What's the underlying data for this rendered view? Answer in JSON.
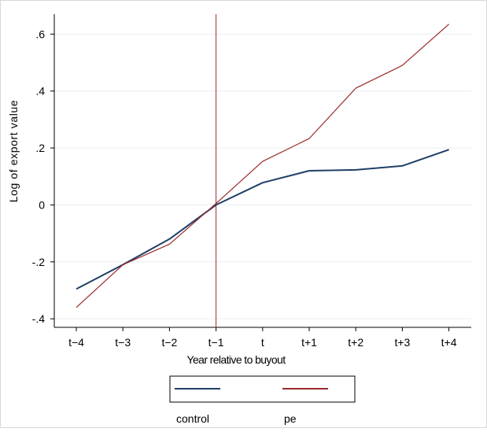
{
  "chart_data": {
    "type": "line",
    "x": [
      "t−4",
      "t−3",
      "t−2",
      "t−1",
      "t",
      "t+1",
      "t+2",
      "t+3",
      "t+4"
    ],
    "xlabel": "Year relative to buyout",
    "ylabel": "Log of export value",
    "ylim": [
      -0.43,
      0.67
    ],
    "yticks": [
      {
        "value": -0.4,
        "label": "-.4"
      },
      {
        "value": -0.2,
        "label": "-.2"
      },
      {
        "value": 0,
        "label": "0"
      },
      {
        "value": 0.2,
        "label": ".2"
      },
      {
        "value": 0.4,
        "label": ".4"
      },
      {
        "value": 0.6,
        "label": ".6"
      }
    ],
    "grid": true,
    "vline": {
      "x": "t−1",
      "color": "#9b2a2a"
    },
    "legend_position": "bottom",
    "series": [
      {
        "name": "control",
        "color": "#1f3f66",
        "values": [
          -0.295,
          -0.21,
          -0.12,
          0.0,
          0.078,
          0.12,
          0.123,
          0.137,
          0.194
        ]
      },
      {
        "name": "pe",
        "color": "#9b2a2a",
        "values": [
          -0.36,
          -0.21,
          -0.138,
          0.005,
          0.153,
          0.233,
          0.41,
          0.49,
          0.635
        ]
      }
    ]
  }
}
